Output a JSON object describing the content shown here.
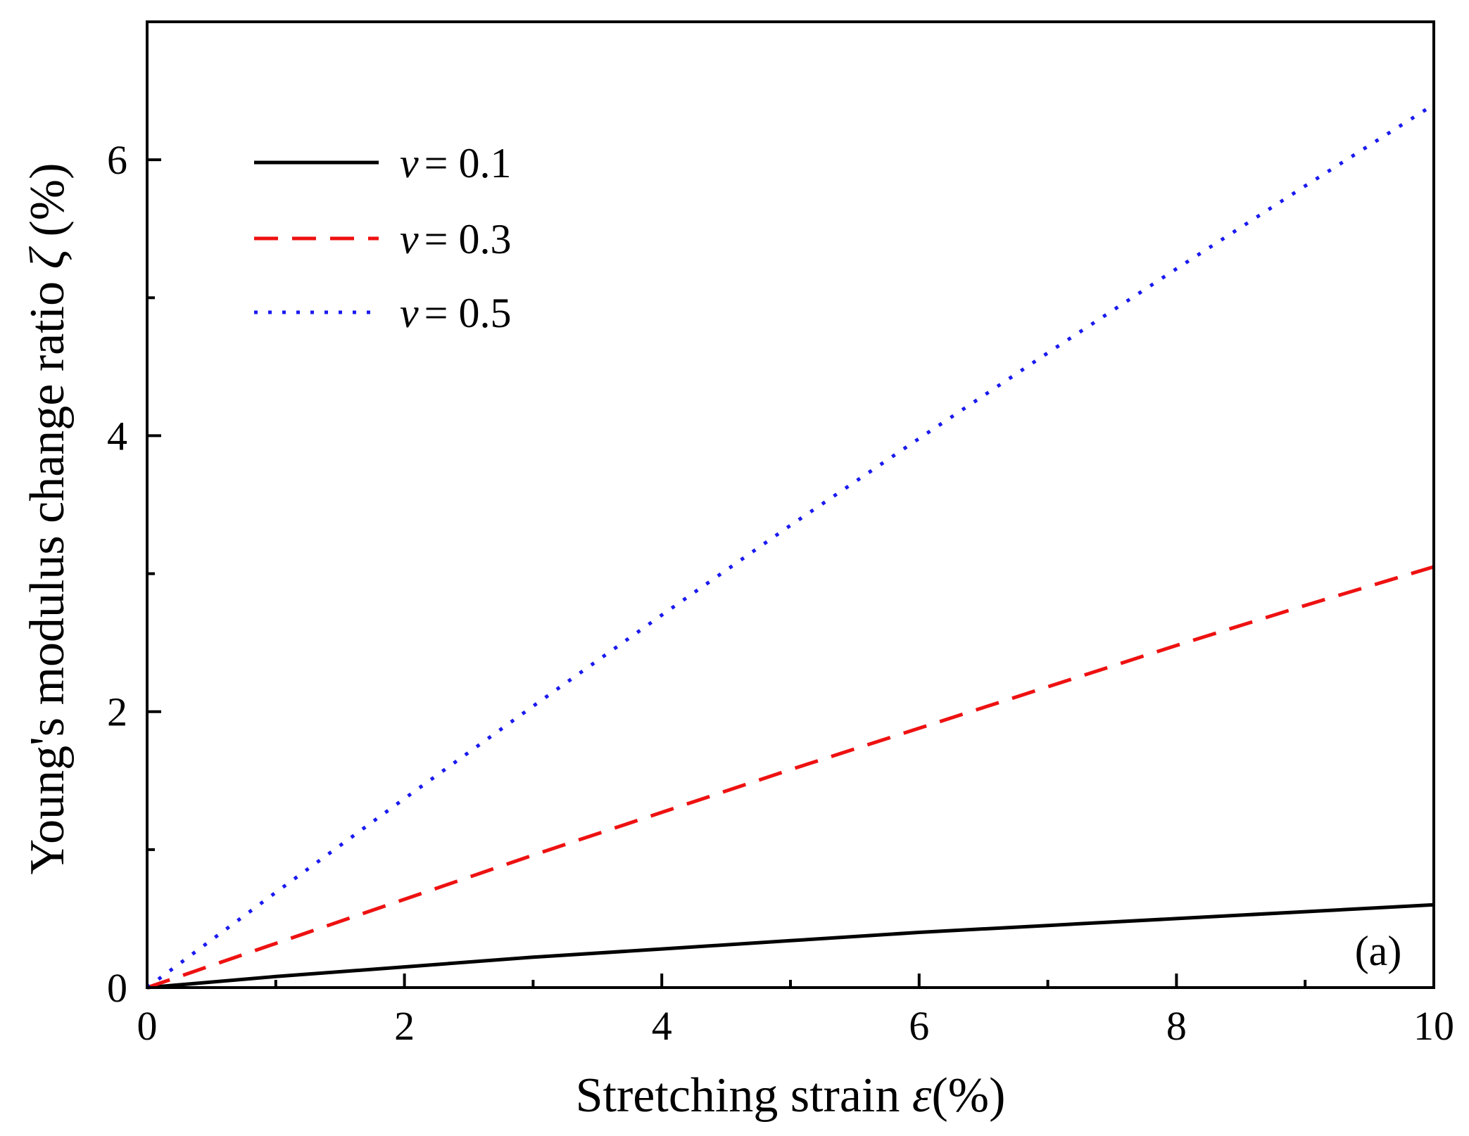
{
  "chart_data": {
    "type": "line",
    "title": "",
    "xlabel": {
      "prefix": "Stretching strain ",
      "symbol": "ε",
      "suffix": "(%)"
    },
    "ylabel": {
      "prefix": "Young's modulus change ratio ",
      "symbol": "ζ",
      "suffix": " (%)"
    },
    "xlim": [
      0,
      10
    ],
    "ylim": [
      0,
      7
    ],
    "x_ticks": [
      0,
      2,
      4,
      6,
      8,
      10
    ],
    "y_ticks": [
      0,
      2,
      4,
      6
    ],
    "x_minor_ticks": [
      1,
      3,
      5,
      7,
      9
    ],
    "y_minor_ticks": [
      1,
      3,
      5
    ],
    "grid": false,
    "legend_position": "top-left",
    "panel_label": "(a)",
    "x": [
      0,
      1,
      2,
      3,
      4,
      5,
      6,
      7,
      8,
      9,
      10
    ],
    "series": [
      {
        "name": "ν = 0.1",
        "symbol": "ν",
        "label_rest": "= 0.1",
        "color": "#000000",
        "style": "solid",
        "values": [
          0,
          0.08,
          0.15,
          0.22,
          0.28,
          0.34,
          0.4,
          0.45,
          0.5,
          0.55,
          0.6
        ]
      },
      {
        "name": "ν = 0.3",
        "symbol": "ν",
        "label_rest": "= 0.3",
        "color": "#ee1111",
        "style": "dashed",
        "values": [
          0,
          0.32,
          0.64,
          0.96,
          1.27,
          1.58,
          1.88,
          2.18,
          2.48,
          2.77,
          3.05
        ]
      },
      {
        "name": "ν = 0.5",
        "symbol": "ν",
        "label_rest": "= 0.5",
        "color": "#1a1aee",
        "style": "dotted",
        "values": [
          0,
          0.69,
          1.37,
          2.04,
          2.7,
          3.35,
          3.98,
          4.6,
          5.21,
          5.81,
          6.4
        ]
      }
    ]
  }
}
